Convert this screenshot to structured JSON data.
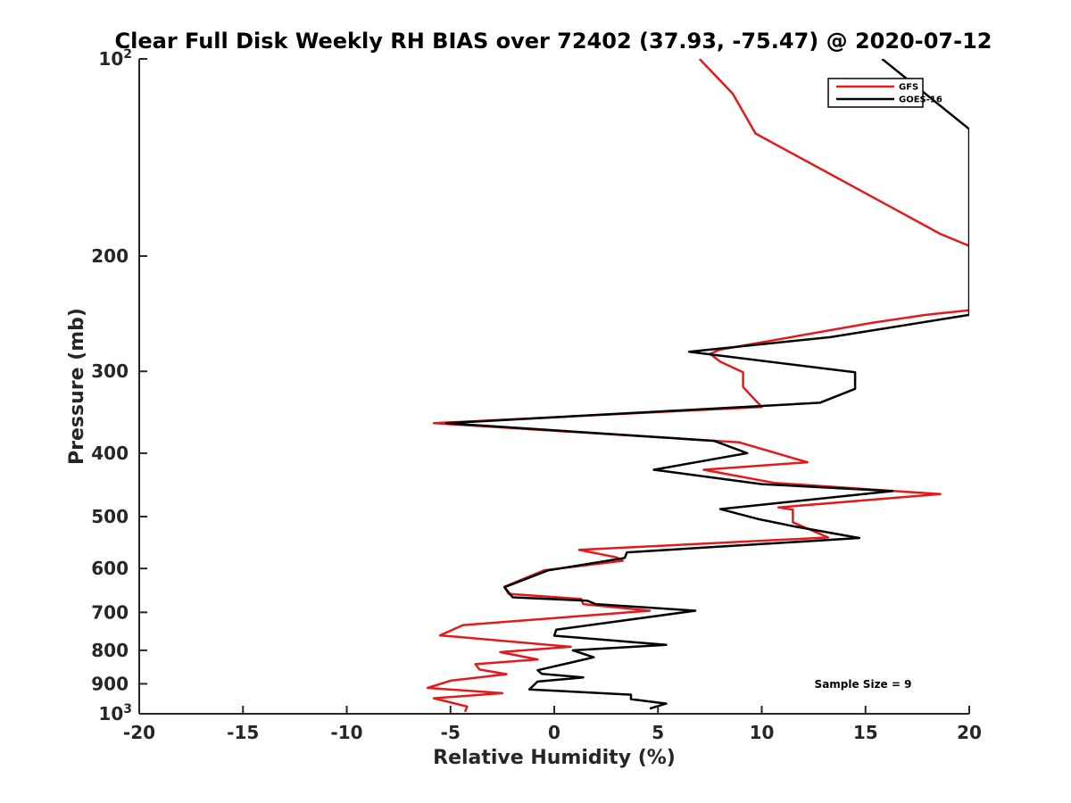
{
  "chart_data": {
    "type": "line",
    "title": "Clear Full Disk Weekly RH BIAS over 72402 (37.93, -75.47) @ 2020-07-12",
    "xlabel": "Relative Humidity (%)",
    "ylabel": "Pressure (mb)",
    "xlim": [
      -20,
      20
    ],
    "ylim": [
      100,
      1000
    ],
    "yscale": "log",
    "y_reversed": true,
    "grid": false,
    "x_ticks": [
      -20,
      -15,
      -10,
      -5,
      0,
      5,
      10,
      15,
      20
    ],
    "x_tick_labels": [
      "-20",
      "-15",
      "-10",
      "-5",
      "0",
      "5",
      "10",
      "15",
      "20"
    ],
    "y_ticks": [
      {
        "value": 100,
        "base": "10",
        "exp": "2"
      },
      {
        "value": 200,
        "label": "200"
      },
      {
        "value": 300,
        "label": "300"
      },
      {
        "value": 400,
        "label": "400"
      },
      {
        "value": 500,
        "label": "500"
      },
      {
        "value": 600,
        "label": "600"
      },
      {
        "value": 700,
        "label": "700"
      },
      {
        "value": 800,
        "label": "800"
      },
      {
        "value": 900,
        "label": "900"
      },
      {
        "value": 1000,
        "base": "10",
        "exp": "3"
      }
    ],
    "legend_position": "top-right",
    "series": [
      {
        "name": "GFS",
        "color": "#e31a1c",
        "points": [
          [
            7.0,
            100
          ],
          [
            8.6,
            113
          ],
          [
            9.7,
            130
          ],
          [
            18.6,
            185
          ],
          [
            20.0,
            193
          ],
          [
            20.1,
            194
          ],
          [
            20.0,
            242
          ],
          [
            17.9,
            246
          ],
          [
            15.3,
            253
          ],
          [
            8.0,
            278
          ],
          [
            7.5,
            282
          ],
          [
            8.0,
            290
          ],
          [
            9.1,
            301
          ],
          [
            9.1,
            317
          ],
          [
            10.0,
            340
          ],
          [
            -5.8,
            360
          ],
          [
            8.9,
            385
          ],
          [
            12.2,
            413
          ],
          [
            7.2,
            424
          ],
          [
            10.6,
            444
          ],
          [
            18.6,
            462
          ],
          [
            10.8,
            484
          ],
          [
            11.5,
            488
          ],
          [
            11.5,
            510
          ],
          [
            13.2,
            538
          ],
          [
            1.2,
            562
          ],
          [
            3.0,
            577
          ],
          [
            3.3,
            584
          ],
          [
            -0.5,
            604
          ],
          [
            -2.4,
            640
          ],
          [
            -2.2,
            656
          ],
          [
            1.3,
            668
          ],
          [
            1.4,
            680
          ],
          [
            4.6,
            696
          ],
          [
            -4.4,
            732
          ],
          [
            -5.5,
            759
          ],
          [
            0.8,
            790
          ],
          [
            -2.6,
            805
          ],
          [
            -0.8,
            826
          ],
          [
            -3.8,
            840
          ],
          [
            -3.6,
            856
          ],
          [
            -2.3,
            870
          ],
          [
            -5.0,
            890
          ],
          [
            -6.1,
            913
          ],
          [
            -2.5,
            930
          ],
          [
            -5.8,
            947
          ],
          [
            -4.2,
            975
          ],
          [
            -4.3,
            993
          ]
        ]
      },
      {
        "name": "GOES-16",
        "color": "#000000",
        "points": [
          [
            15.8,
            100
          ],
          [
            20.0,
            128
          ],
          [
            20.0,
            246
          ],
          [
            13.3,
            266
          ],
          [
            6.5,
            280
          ],
          [
            14.5,
            301
          ],
          [
            14.5,
            319
          ],
          [
            12.8,
            335
          ],
          [
            -5.2,
            360
          ],
          [
            7.7,
            383
          ],
          [
            9.3,
            400
          ],
          [
            4.8,
            424
          ],
          [
            10.0,
            446
          ],
          [
            16.3,
            457
          ],
          [
            8.0,
            487
          ],
          [
            9.8,
            504
          ],
          [
            11.5,
            517
          ],
          [
            14.7,
            539
          ],
          [
            3.5,
            567
          ],
          [
            3.4,
            578
          ],
          [
            -0.3,
            604
          ],
          [
            -2.4,
            641
          ],
          [
            -2.0,
            664
          ],
          [
            1.6,
            672
          ],
          [
            2.0,
            680
          ],
          [
            6.8,
            696
          ],
          [
            0.1,
            744
          ],
          [
            0.0,
            760
          ],
          [
            5.4,
            785
          ],
          [
            0.9,
            800
          ],
          [
            1.9,
            820
          ],
          [
            -0.8,
            858
          ],
          [
            -0.6,
            869
          ],
          [
            1.4,
            880
          ],
          [
            -0.8,
            893
          ],
          [
            -1.2,
            918
          ],
          [
            3.7,
            935
          ],
          [
            3.7,
            950
          ],
          [
            5.4,
            965
          ],
          [
            4.6,
            982
          ]
        ]
      }
    ],
    "annotations": [
      {
        "text": "Sample Size = 9",
        "x": 12.7,
        "y": 904
      }
    ]
  }
}
